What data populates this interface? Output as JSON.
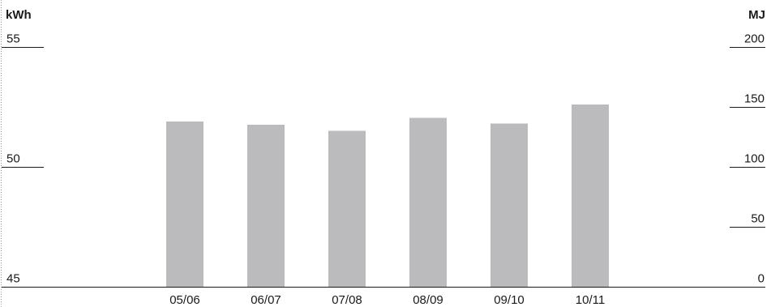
{
  "chart_data": {
    "type": "bar",
    "categories": [
      "05/06",
      "06/07",
      "07/08",
      "08/09",
      "09/10",
      "10/11"
    ],
    "values": [
      51.9,
      51.75,
      51.5,
      52.05,
      51.8,
      52.6
    ],
    "left_axis": {
      "unit": "kWh",
      "ylim": [
        45,
        55
      ],
      "ticks": [
        "45",
        "50",
        "55"
      ]
    },
    "right_axis": {
      "unit": "MJ",
      "ylim": [
        0,
        200
      ],
      "ticks": [
        "0",
        "50",
        "100",
        "150",
        "200"
      ]
    },
    "title": "",
    "xlabel": "",
    "grid": false,
    "legend": "none",
    "colors": {
      "bar": "#bbbbbd",
      "text": "#1a1a1a",
      "axis": "#1a1a1a"
    }
  }
}
